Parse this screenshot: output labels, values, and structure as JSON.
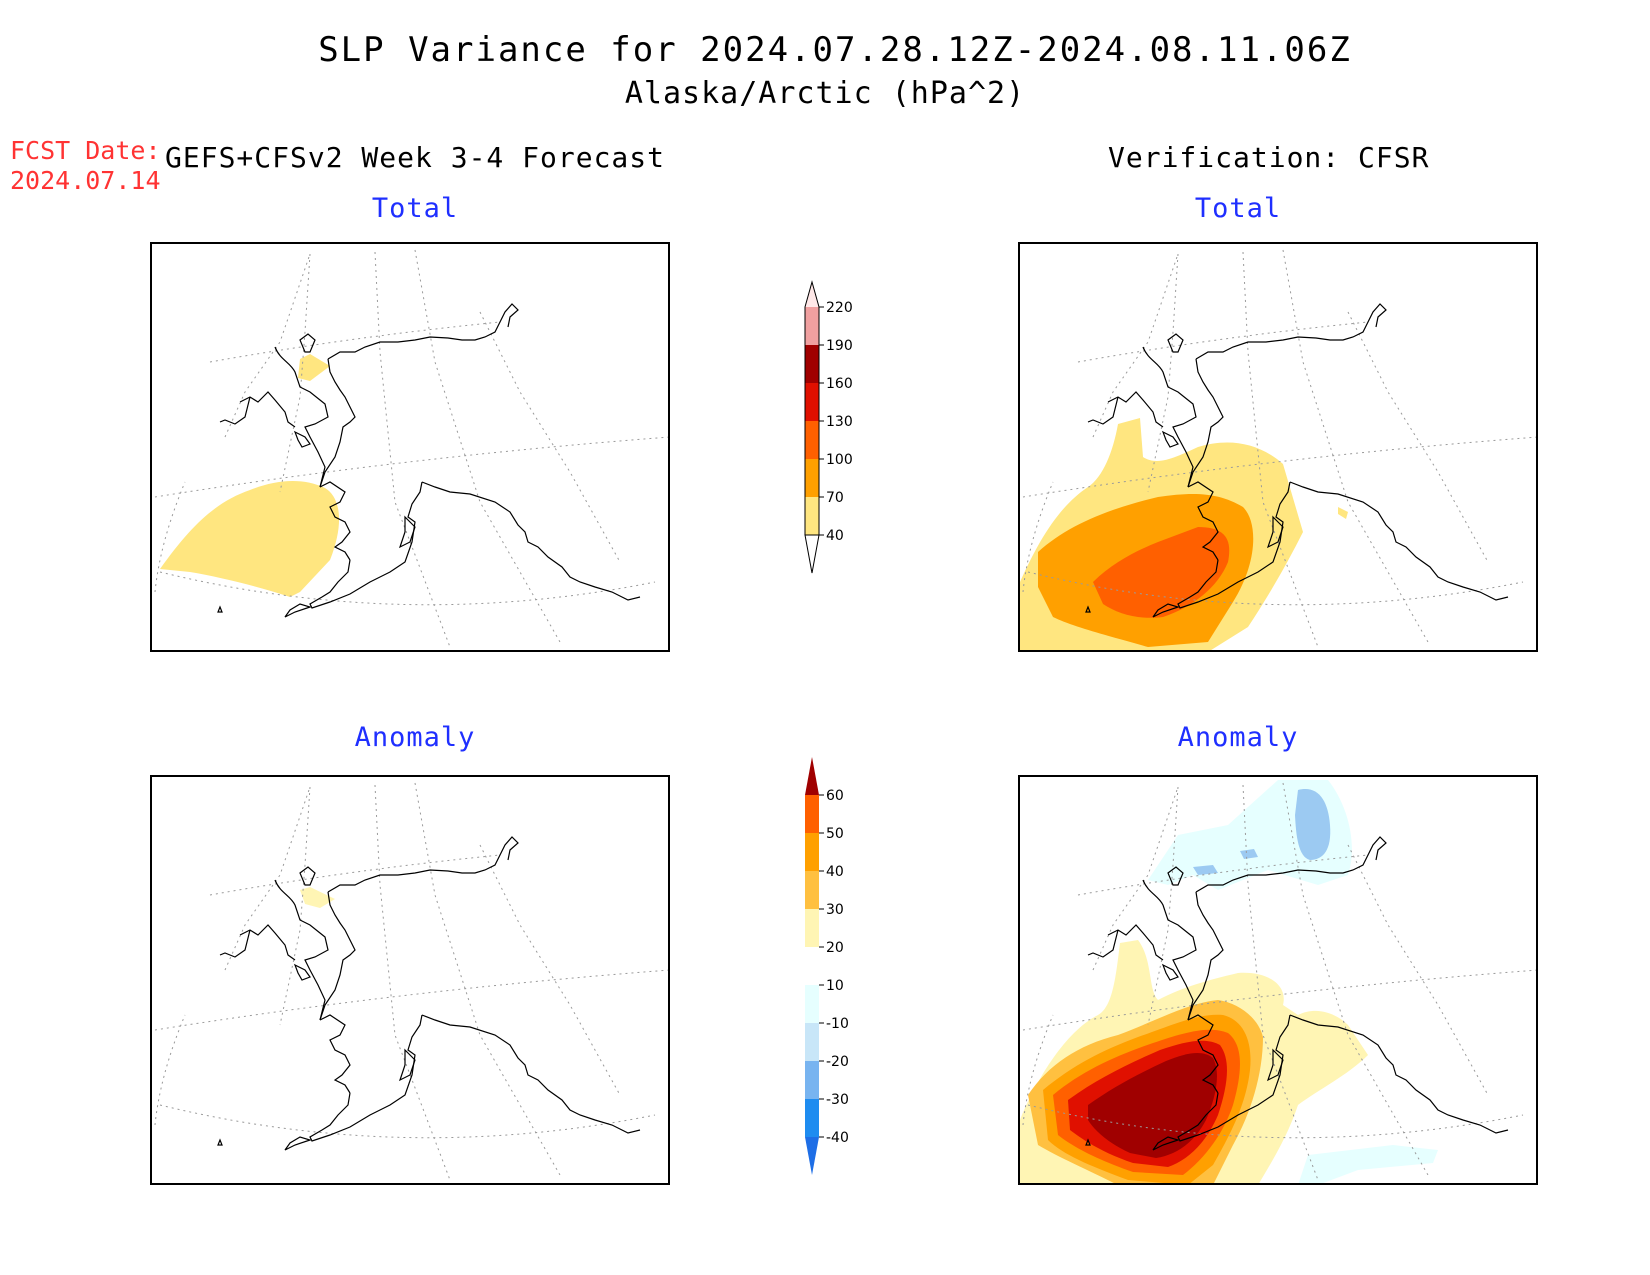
{
  "header": {
    "title": "SLP Variance for 2024.07.28.12Z-2024.08.11.06Z",
    "subtitle": "Alaska/Arctic (hPa^2)",
    "fcst_label": "FCST Date:",
    "fcst_date": "2024.07.14",
    "left_column": "GEFS+CFSv2 Week 3-4 Forecast",
    "right_column": "Verification: CFSR"
  },
  "panels": {
    "forecast_total": "Total",
    "verification_total": "Total",
    "forecast_anomaly": "Anomaly",
    "verification_anomaly": "Anomaly"
  },
  "legends": {
    "total": {
      "labels": [
        "40",
        "70",
        "100",
        "130",
        "160",
        "190",
        "220"
      ],
      "colors": [
        "#ffe680",
        "#ffa000",
        "#ff6000",
        "#e01000",
        "#a00000",
        "#f0a0a0",
        "#ffe8e8"
      ]
    },
    "anomaly": {
      "labels": [
        "-40",
        "-30",
        "-20",
        "-10",
        "10",
        "20",
        "30",
        "40",
        "50",
        "60"
      ],
      "colors": [
        "#1e6ee6",
        "#1e8cf0",
        "#78b4f0",
        "#c8e6f8",
        "#e6ffff",
        "#ffffff",
        "#fff5b4",
        "#ffc040",
        "#ffa000",
        "#ff6000",
        "#e01000",
        "#a00000"
      ]
    }
  },
  "chart_data": {
    "type": "heatmap",
    "variable": "SLP Variance",
    "units": "hPa^2",
    "total_levels": [
      40,
      70,
      100,
      130,
      160,
      190,
      220
    ],
    "anomaly_levels": [
      -40,
      -30,
      -20,
      -10,
      10,
      20,
      30,
      40,
      50,
      60
    ],
    "colors": {
      "map_line": "#000000",
      "grid": "#9a9a9a",
      "subtitle": "#1f2fff",
      "fcst": "#ff3333"
    }
  }
}
